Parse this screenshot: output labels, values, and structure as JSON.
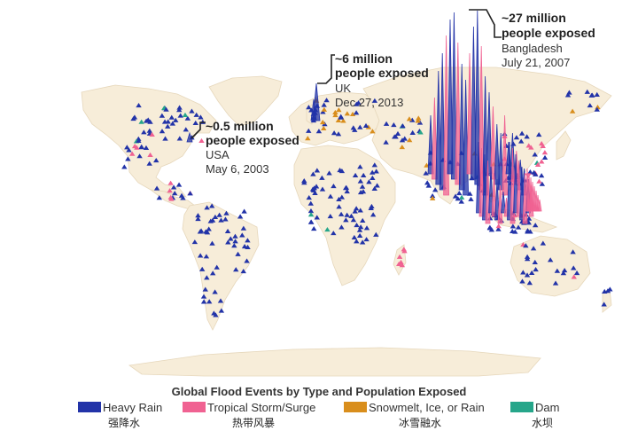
{
  "legend": {
    "title": "Global Flood Events by Type and Population Exposed",
    "items": [
      {
        "label": "Heavy Rain",
        "cn": "强降水",
        "color": "#2233a8"
      },
      {
        "label": "Tropical Storm/Surge",
        "cn": "热带风暴",
        "color": "#f06292"
      },
      {
        "label": "Snowmelt, Ice, or Rain",
        "cn": "冰雪融水",
        "color": "#d98e1c"
      },
      {
        "label": "Dam",
        "cn": "水坝",
        "color": "#26a68a"
      }
    ]
  },
  "callouts": {
    "usa": {
      "amount": "~0.5 million",
      "unit": "people exposed",
      "place": "USA",
      "date": "May 6, 2003"
    },
    "uk": {
      "amount": "~6 million",
      "unit": "people exposed",
      "place": "UK",
      "date": "Dec 27, 2013"
    },
    "bgd": {
      "amount": "~27 million",
      "unit": "people exposed",
      "place": "Bangladesh",
      "date": "July 21, 2007"
    }
  }
}
